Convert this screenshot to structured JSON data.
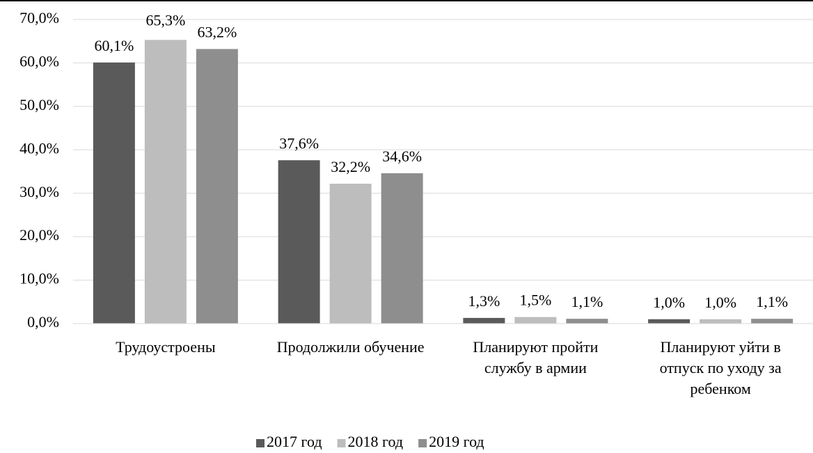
{
  "chart_data": {
    "type": "bar",
    "categories": [
      "Трудоустроены",
      "Продолжили обучение",
      "Планируют пройти службу в армии",
      "Планируют уйти в отпуск по уходу за ребенком"
    ],
    "series": [
      {
        "name": "2017 год",
        "color": "#5a5a5a",
        "values": [
          60.1,
          37.6,
          1.3,
          1.0
        ],
        "value_labels": [
          "60,1%",
          "37,6%",
          "1,3%",
          "1,0%"
        ]
      },
      {
        "name": "2018 год",
        "color": "#bdbdbd",
        "values": [
          65.3,
          32.2,
          1.5,
          1.0
        ],
        "value_labels": [
          "65,3%",
          "32,2%",
          "1,5%",
          "1,0%"
        ]
      },
      {
        "name": "2019 год",
        "color": "#8e8e8e",
        "values": [
          63.2,
          34.6,
          1.1,
          1.1
        ],
        "value_labels": [
          "63,2%",
          "34,6%",
          "1,1%",
          "1,1%"
        ]
      }
    ],
    "ylim": [
      0,
      70
    ],
    "yticks": [
      {
        "value": 0,
        "label": "0,0%"
      },
      {
        "value": 10,
        "label": "10,0%"
      },
      {
        "value": 20,
        "label": "20,0%"
      },
      {
        "value": 30,
        "label": "30,0%"
      },
      {
        "value": 40,
        "label": "40,0%"
      },
      {
        "value": 50,
        "label": "50,0%"
      },
      {
        "value": 60,
        "label": "60,0%"
      },
      {
        "value": 70,
        "label": "70,0%"
      }
    ],
    "grid": true,
    "legend": "bottom"
  }
}
